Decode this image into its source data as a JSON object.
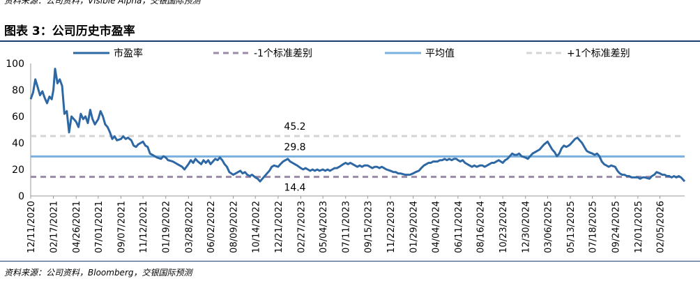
{
  "header": {
    "top_source": "资料来源：公司资料，Visible Alpha，交银国际预测",
    "title": "图表 3：公司历史市盈率"
  },
  "footer": {
    "source": "资料来源：公司资料，Bloomberg，交银国际预测"
  },
  "chart_data": {
    "type": "line",
    "title": "",
    "xlabel": "",
    "ylabel": "",
    "ylim": [
      0,
      100
    ],
    "y_ticks": [
      "0",
      "20",
      "40",
      "60",
      "80",
      "100"
    ],
    "x_range": [
      "2020-12-11",
      "2026-04-20"
    ],
    "x_tick_labels": [
      "12/11/2020",
      "02/17/2021",
      "04/26/2021",
      "07/01/2021",
      "09/07/2021",
      "11/12/2021",
      "01/19/2022",
      "03/28/2022",
      "06/02/2022",
      "08/09/2022",
      "10/14/2022",
      "12/21/2022",
      "02/27/2023",
      "05/04/2023",
      "07/11/2023",
      "09/15/2023",
      "11/22/2023",
      "01/29/2024",
      "04/04/2024",
      "06/11/2024",
      "08/16/2024",
      "10/23/2024",
      "12/30/2024",
      "03/06/2025",
      "05/13/2025",
      "07/18/2025",
      "09/24/2025",
      "12/01/2025",
      "02/05/2026"
    ],
    "x_tick_dates": [
      "2020-12-11",
      "2021-02-17",
      "2021-04-26",
      "2021-07-01",
      "2021-09-07",
      "2021-11-12",
      "2022-01-19",
      "2022-03-28",
      "2022-06-02",
      "2022-08-09",
      "2022-10-14",
      "2022-12-21",
      "2023-02-27",
      "2023-05-04",
      "2023-07-11",
      "2023-09-15",
      "2023-11-22",
      "2024-01-29",
      "2024-04-04",
      "2024-06-11",
      "2024-08-16",
      "2024-10-23",
      "2024-12-30",
      "2025-03-06",
      "2025-05-13",
      "2025-07-18",
      "2025-09-24",
      "2025-12-01",
      "2026-02-05"
    ],
    "legend": {
      "placement": "top",
      "entries": [
        "市盈率",
        "-1个标准差别",
        "平均值",
        "+1个标准差别"
      ]
    },
    "reference_lines": [
      {
        "name": "-1个标准差别",
        "value": 14.4,
        "label": "14.4",
        "color": "#9a8aa6",
        "style": "dashed"
      },
      {
        "name": "平均值",
        "value": 29.8,
        "label": "29.8",
        "color": "#7ab0de",
        "style": "solid"
      },
      {
        "name": "+1个标准差别",
        "value": 45.2,
        "label": "45.2",
        "color": "#d4d4d4",
        "style": "dashed"
      }
    ],
    "series": [
      {
        "name": "市盈率",
        "color": "#2e68a4",
        "points": [
          [
            "2020-12-11",
            73
          ],
          [
            "2020-12-18",
            78
          ],
          [
            "2020-12-25",
            88
          ],
          [
            "2021-01-01",
            82
          ],
          [
            "2021-01-08",
            76
          ],
          [
            "2021-01-15",
            79
          ],
          [
            "2021-01-22",
            74
          ],
          [
            "2021-01-29",
            70
          ],
          [
            "2021-02-05",
            75
          ],
          [
            "2021-02-12",
            73
          ],
          [
            "2021-02-17",
            80
          ],
          [
            "2021-02-22",
            96
          ],
          [
            "2021-03-01",
            85
          ],
          [
            "2021-03-08",
            88
          ],
          [
            "2021-03-15",
            83
          ],
          [
            "2021-03-22",
            62
          ],
          [
            "2021-03-29",
            64
          ],
          [
            "2021-04-05",
            48
          ],
          [
            "2021-04-12",
            60
          ],
          [
            "2021-04-19",
            58
          ],
          [
            "2021-04-26",
            56
          ],
          [
            "2021-05-03",
            52
          ],
          [
            "2021-05-10",
            62
          ],
          [
            "2021-05-17",
            58
          ],
          [
            "2021-05-24",
            60
          ],
          [
            "2021-05-31",
            55
          ],
          [
            "2021-06-07",
            65
          ],
          [
            "2021-06-14",
            58
          ],
          [
            "2021-06-21",
            54
          ],
          [
            "2021-07-01",
            58
          ],
          [
            "2021-07-08",
            64
          ],
          [
            "2021-07-15",
            60
          ],
          [
            "2021-07-22",
            54
          ],
          [
            "2021-07-29",
            52
          ],
          [
            "2021-08-05",
            48
          ],
          [
            "2021-08-12",
            43
          ],
          [
            "2021-08-19",
            45
          ],
          [
            "2021-08-26",
            42
          ],
          [
            "2021-09-07",
            43
          ],
          [
            "2021-09-14",
            45
          ],
          [
            "2021-09-21",
            43
          ],
          [
            "2021-09-28",
            44
          ],
          [
            "2021-10-08",
            42
          ],
          [
            "2021-10-15",
            38
          ],
          [
            "2021-10-22",
            37
          ],
          [
            "2021-10-29",
            39
          ],
          [
            "2021-11-05",
            40
          ],
          [
            "2021-11-12",
            41
          ],
          [
            "2021-11-19",
            38
          ],
          [
            "2021-11-26",
            37
          ],
          [
            "2021-12-03",
            32
          ],
          [
            "2021-12-10",
            31
          ],
          [
            "2021-12-17",
            30
          ],
          [
            "2021-12-24",
            29
          ],
          [
            "2022-01-05",
            28
          ],
          [
            "2022-01-12",
            30
          ],
          [
            "2022-01-19",
            29
          ],
          [
            "2022-01-26",
            27
          ],
          [
            "2022-02-09",
            26
          ],
          [
            "2022-02-16",
            25
          ],
          [
            "2022-02-23",
            24
          ],
          [
            "2022-03-02",
            23
          ],
          [
            "2022-03-09",
            22
          ],
          [
            "2022-03-16",
            20
          ],
          [
            "2022-03-28",
            24
          ],
          [
            "2022-04-04",
            27
          ],
          [
            "2022-04-11",
            25
          ],
          [
            "2022-04-18",
            28
          ],
          [
            "2022-04-25",
            26
          ],
          [
            "2022-05-05",
            24
          ],
          [
            "2022-05-12",
            27
          ],
          [
            "2022-05-19",
            25
          ],
          [
            "2022-05-26",
            27
          ],
          [
            "2022-06-02",
            24
          ],
          [
            "2022-06-09",
            26
          ],
          [
            "2022-06-16",
            28
          ],
          [
            "2022-06-23",
            27
          ],
          [
            "2022-06-30",
            29
          ],
          [
            "2022-07-07",
            27
          ],
          [
            "2022-07-14",
            24
          ],
          [
            "2022-07-21",
            22
          ],
          [
            "2022-07-28",
            18
          ],
          [
            "2022-08-09",
            16
          ],
          [
            "2022-08-16",
            17
          ],
          [
            "2022-08-23",
            18
          ],
          [
            "2022-08-30",
            19
          ],
          [
            "2022-09-06",
            17
          ],
          [
            "2022-09-13",
            18
          ],
          [
            "2022-09-20",
            16
          ],
          [
            "2022-09-27",
            15
          ],
          [
            "2022-10-04",
            16
          ],
          [
            "2022-10-14",
            14
          ],
          [
            "2022-10-21",
            13
          ],
          [
            "2022-10-28",
            11
          ],
          [
            "2022-11-04",
            13
          ],
          [
            "2022-11-11",
            15
          ],
          [
            "2022-11-18",
            17
          ],
          [
            "2022-11-25",
            19
          ],
          [
            "2022-12-02",
            22
          ],
          [
            "2022-12-09",
            23
          ],
          [
            "2022-12-21",
            22
          ],
          [
            "2022-12-28",
            24
          ],
          [
            "2023-01-05",
            26
          ],
          [
            "2023-01-12",
            27
          ],
          [
            "2023-01-19",
            28
          ],
          [
            "2023-01-26",
            26
          ],
          [
            "2023-02-02",
            25
          ],
          [
            "2023-02-09",
            24
          ],
          [
            "2023-02-16",
            23
          ],
          [
            "2023-02-27",
            21
          ],
          [
            "2023-03-06",
            20
          ],
          [
            "2023-03-13",
            21
          ],
          [
            "2023-03-20",
            20
          ],
          [
            "2023-03-27",
            19
          ],
          [
            "2023-04-03",
            20
          ],
          [
            "2023-04-10",
            19
          ],
          [
            "2023-04-17",
            20
          ],
          [
            "2023-04-24",
            19
          ],
          [
            "2023-05-04",
            20
          ],
          [
            "2023-05-11",
            19
          ],
          [
            "2023-05-18",
            20
          ],
          [
            "2023-05-25",
            19
          ],
          [
            "2023-06-01",
            20
          ],
          [
            "2023-06-08",
            21
          ],
          [
            "2023-06-15",
            21
          ],
          [
            "2023-06-22",
            22
          ],
          [
            "2023-07-04",
            24
          ],
          [
            "2023-07-11",
            25
          ],
          [
            "2023-07-18",
            24
          ],
          [
            "2023-07-25",
            25
          ],
          [
            "2023-08-01",
            24
          ],
          [
            "2023-08-08",
            23
          ],
          [
            "2023-08-15",
            22
          ],
          [
            "2023-08-22",
            23
          ],
          [
            "2023-08-29",
            22
          ],
          [
            "2023-09-05",
            23
          ],
          [
            "2023-09-15",
            23
          ],
          [
            "2023-09-22",
            22
          ],
          [
            "2023-09-29",
            21
          ],
          [
            "2023-10-06",
            22
          ],
          [
            "2023-10-13",
            22
          ],
          [
            "2023-10-20",
            21
          ],
          [
            "2023-10-27",
            22
          ],
          [
            "2023-11-03",
            21
          ],
          [
            "2023-11-10",
            20
          ],
          [
            "2023-11-22",
            19
          ],
          [
            "2023-12-01",
            18
          ],
          [
            "2023-12-08",
            18
          ],
          [
            "2023-12-15",
            17
          ],
          [
            "2023-12-22",
            17
          ],
          [
            "2024-01-05",
            16
          ],
          [
            "2024-01-12",
            16
          ],
          [
            "2024-01-19",
            16
          ],
          [
            "2024-01-29",
            17
          ],
          [
            "2024-02-05",
            18
          ],
          [
            "2024-02-15",
            19
          ],
          [
            "2024-02-22",
            21
          ],
          [
            "2024-03-01",
            23
          ],
          [
            "2024-03-08",
            24
          ],
          [
            "2024-03-15",
            25
          ],
          [
            "2024-03-22",
            25
          ],
          [
            "2024-03-29",
            26
          ],
          [
            "2024-04-04",
            26
          ],
          [
            "2024-04-11",
            26
          ],
          [
            "2024-04-18",
            27
          ],
          [
            "2024-04-25",
            27
          ],
          [
            "2024-05-02",
            28
          ],
          [
            "2024-05-09",
            27
          ],
          [
            "2024-05-16",
            28
          ],
          [
            "2024-05-23",
            27
          ],
          [
            "2024-05-30",
            28
          ],
          [
            "2024-06-06",
            28
          ],
          [
            "2024-06-11",
            27
          ],
          [
            "2024-06-18",
            26
          ],
          [
            "2024-06-25",
            27
          ],
          [
            "2024-07-02",
            25
          ],
          [
            "2024-07-09",
            24
          ],
          [
            "2024-07-16",
            23
          ],
          [
            "2024-07-23",
            22
          ],
          [
            "2024-07-30",
            23
          ],
          [
            "2024-08-06",
            22
          ],
          [
            "2024-08-16",
            23
          ],
          [
            "2024-08-23",
            23
          ],
          [
            "2024-08-30",
            22
          ],
          [
            "2024-09-06",
            23
          ],
          [
            "2024-09-13",
            24
          ],
          [
            "2024-09-20",
            25
          ],
          [
            "2024-09-27",
            25
          ],
          [
            "2024-10-04",
            26
          ],
          [
            "2024-10-11",
            27
          ],
          [
            "2024-10-23",
            25
          ],
          [
            "2024-10-30",
            27
          ],
          [
            "2024-11-06",
            28
          ],
          [
            "2024-11-13",
            30
          ],
          [
            "2024-11-20",
            32
          ],
          [
            "2024-11-27",
            31
          ],
          [
            "2024-12-04",
            31
          ],
          [
            "2024-12-11",
            32
          ],
          [
            "2024-12-18",
            30
          ],
          [
            "2024-12-30",
            29
          ],
          [
            "2025-01-06",
            28
          ],
          [
            "2025-01-13",
            30
          ],
          [
            "2025-01-20",
            32
          ],
          [
            "2025-01-27",
            33
          ],
          [
            "2025-02-03",
            34
          ],
          [
            "2025-02-10",
            35
          ],
          [
            "2025-02-17",
            37
          ],
          [
            "2025-02-24",
            39
          ],
          [
            "2025-03-06",
            41
          ],
          [
            "2025-03-13",
            38
          ],
          [
            "2025-03-20",
            35
          ],
          [
            "2025-03-27",
            33
          ],
          [
            "2025-04-03",
            30
          ],
          [
            "2025-04-10",
            32
          ],
          [
            "2025-04-17",
            36
          ],
          [
            "2025-04-24",
            38
          ],
          [
            "2025-05-01",
            37
          ],
          [
            "2025-05-08",
            38
          ],
          [
            "2025-05-13",
            39
          ],
          [
            "2025-05-20",
            41
          ],
          [
            "2025-05-27",
            43
          ],
          [
            "2025-06-03",
            44
          ],
          [
            "2025-06-10",
            42
          ],
          [
            "2025-06-17",
            40
          ],
          [
            "2025-06-24",
            37
          ],
          [
            "2025-07-01",
            34
          ],
          [
            "2025-07-08",
            33
          ],
          [
            "2025-07-18",
            32
          ],
          [
            "2025-07-25",
            31
          ],
          [
            "2025-08-01",
            32
          ],
          [
            "2025-08-08",
            30
          ],
          [
            "2025-08-15",
            26
          ],
          [
            "2025-08-22",
            24
          ],
          [
            "2025-08-29",
            23
          ],
          [
            "2025-09-05",
            22
          ],
          [
            "2025-09-12",
            23
          ],
          [
            "2025-09-24",
            22
          ],
          [
            "2025-10-01",
            19
          ],
          [
            "2025-10-08",
            17
          ],
          [
            "2025-10-15",
            16
          ],
          [
            "2025-10-22",
            16
          ],
          [
            "2025-10-29",
            15
          ],
          [
            "2025-11-05",
            15
          ],
          [
            "2025-11-12",
            14
          ],
          [
            "2025-11-19",
            14
          ],
          [
            "2025-12-01",
            14
          ],
          [
            "2025-12-08",
            13
          ],
          [
            "2025-12-15",
            14
          ],
          [
            "2025-12-22",
            14
          ],
          [
            "2026-01-05",
            13
          ],
          [
            "2026-01-12",
            15
          ],
          [
            "2026-01-19",
            16
          ],
          [
            "2026-01-26",
            18
          ],
          [
            "2026-02-05",
            17
          ],
          [
            "2026-02-12",
            16
          ],
          [
            "2026-02-19",
            16
          ],
          [
            "2026-02-26",
            15
          ],
          [
            "2026-03-05",
            15
          ],
          [
            "2026-03-12",
            14
          ],
          [
            "2026-03-19",
            15
          ],
          [
            "2026-03-26",
            14
          ],
          [
            "2026-04-02",
            15
          ],
          [
            "2026-04-09",
            14
          ],
          [
            "2026-04-20",
            11
          ]
        ]
      }
    ]
  }
}
